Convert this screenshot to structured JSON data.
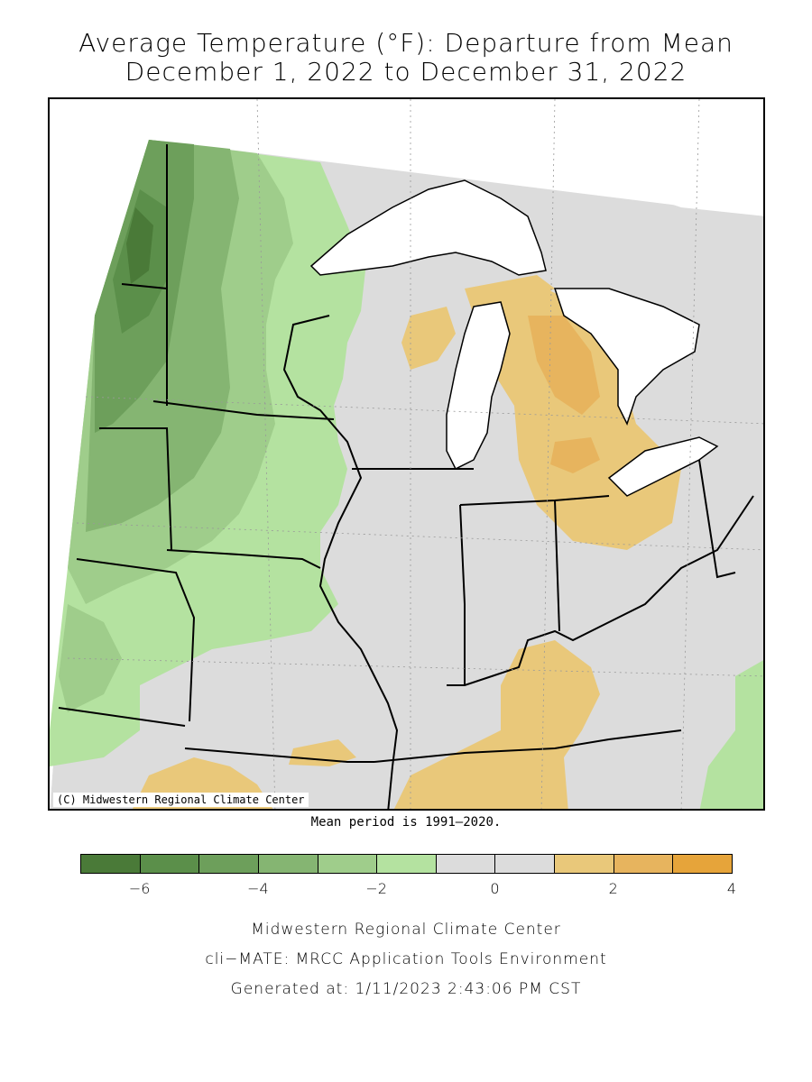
{
  "title": {
    "line1": "Average Temperature (°F): Departure from Mean",
    "line2": "December 1, 2022 to December 31, 2022"
  },
  "map": {
    "copyright": "(C) Midwestern Regional Climate Center",
    "colors": {
      "water": "#ffffff",
      "neutral": "#dcdcdc",
      "green1": "#b4e2a0",
      "green2": "#9fd08b",
      "green3": "#89bb76",
      "green4": "#73a862",
      "green5": "#5c944d",
      "green6": "#467d3a",
      "orange1": "#e9c87a",
      "orange2": "#e7b45e",
      "orange3": "#e6a43a"
    }
  },
  "mean_period": "Mean period is 1991–2020.",
  "legend": {
    "bins": [
      {
        "from": -7,
        "to": -6,
        "color": "#4a7a38"
      },
      {
        "from": -6,
        "to": -5,
        "color": "#5b8f4a"
      },
      {
        "from": -5,
        "to": -4,
        "color": "#6d9f5b"
      },
      {
        "from": -4,
        "to": -3,
        "color": "#85b572"
      },
      {
        "from": -3,
        "to": -2,
        "color": "#9fcd8b"
      },
      {
        "from": -2,
        "to": -1,
        "color": "#b4e2a0"
      },
      {
        "from": -1,
        "to": 0,
        "color": "#dcdcdc"
      },
      {
        "from": 0,
        "to": 1,
        "color": "#dcdcdc"
      },
      {
        "from": 1,
        "to": 2,
        "color": "#e9c87a"
      },
      {
        "from": 2,
        "to": 3,
        "color": "#e7b45e"
      },
      {
        "from": 3,
        "to": 4,
        "color": "#e6a43a"
      }
    ],
    "ticks": [
      "−6",
      "−4",
      "−2",
      "0",
      "2",
      "4"
    ],
    "tick_values": [
      -6,
      -4,
      -2,
      0,
      2,
      4
    ]
  },
  "footer": {
    "line1": "Midwestern Regional Climate Center",
    "line2": "cli−MATE: MRCC Application Tools Environment",
    "line3": "Generated at: 1/11/2023 2:43:06 PM CST"
  }
}
